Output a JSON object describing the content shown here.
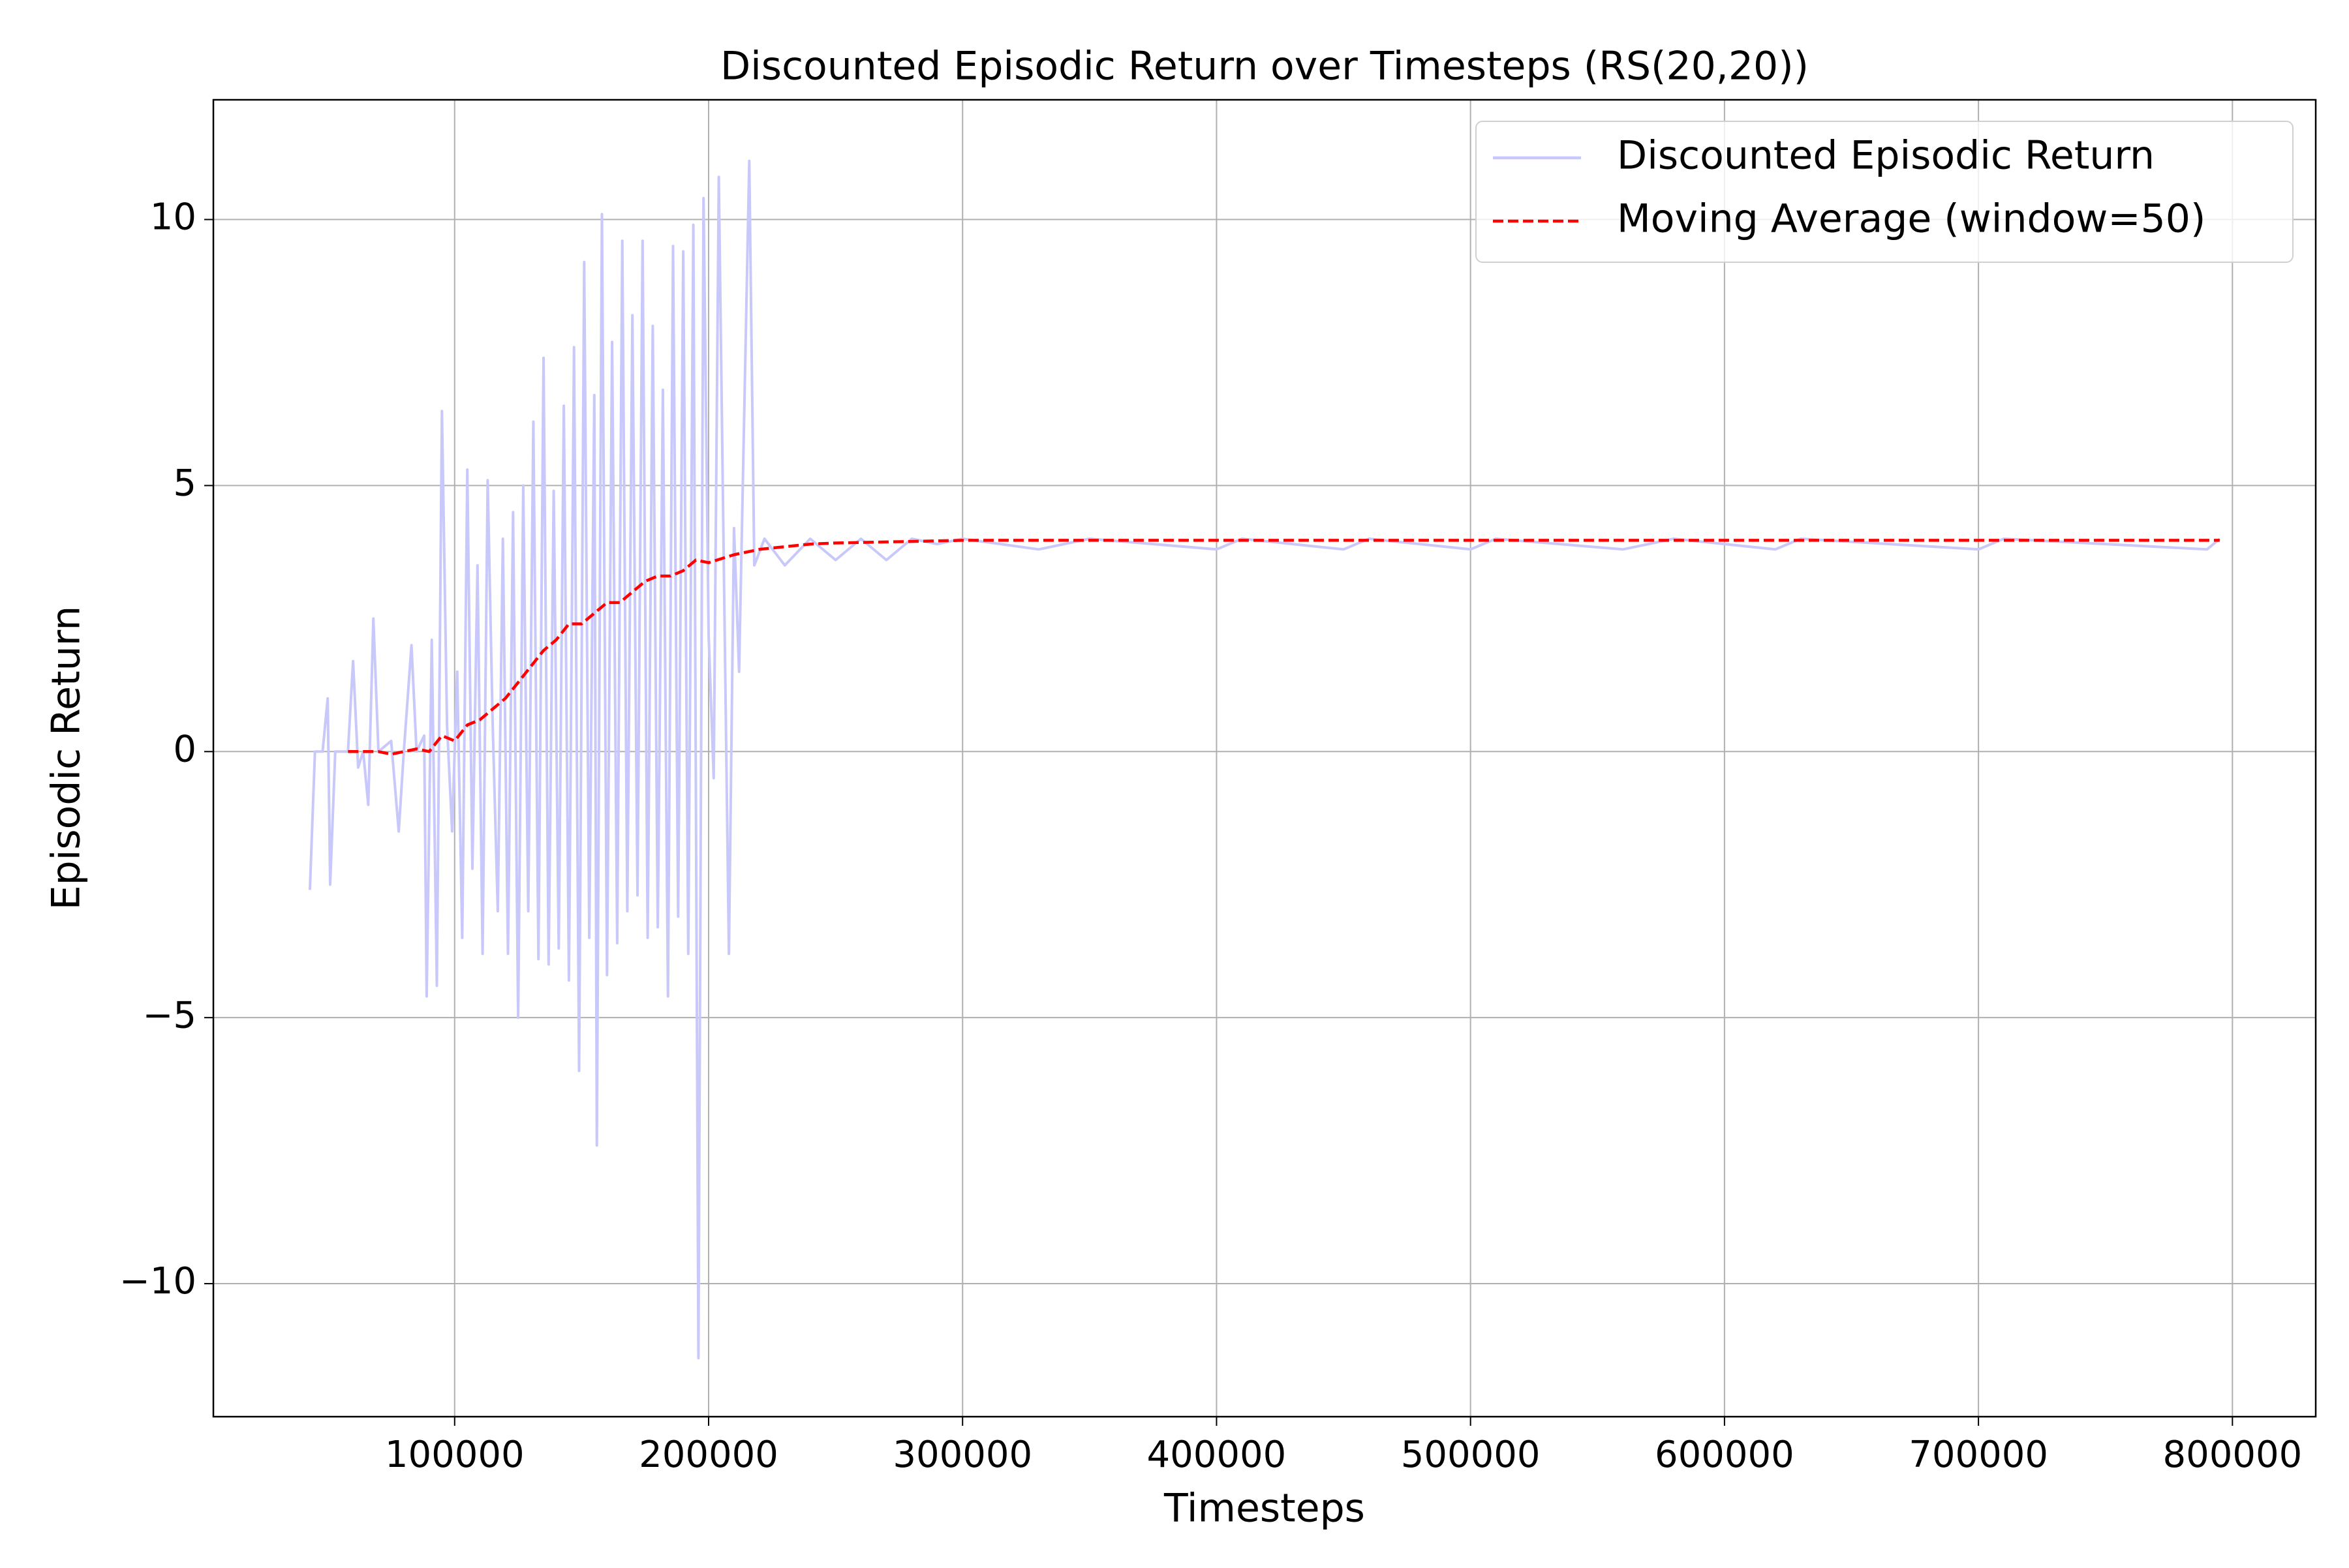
{
  "chart_data": {
    "type": "line",
    "title": "Discounted Episodic Return over Timesteps (RS(20,20))",
    "x_label": "Timesteps",
    "y_label": "Episodic Return",
    "xlim": [
      5000,
      832800
    ],
    "ylim": [
      -12.5,
      12.25
    ],
    "xticks": [
      100000,
      200000,
      300000,
      400000,
      500000,
      600000,
      700000,
      800000
    ],
    "yticks": [
      {
        "value": -10,
        "label": "−10"
      },
      {
        "value": -5,
        "label": "−5"
      },
      0,
      5,
      10
    ],
    "grid": true,
    "legend": "upper right",
    "series": [
      {
        "name": "Discounted Episodic Return",
        "color": "#c8c8fa",
        "style": "solid",
        "x": [
          43000,
          45000,
          48000,
          50000,
          51000,
          53000,
          58000,
          60000,
          62000,
          64000,
          66000,
          68000,
          70000,
          75000,
          78000,
          80000,
          83000,
          85000,
          88000,
          89000,
          91000,
          93000,
          95000,
          97000,
          99000,
          101000,
          103000,
          105000,
          107000,
          109000,
          111000,
          113000,
          115000,
          117000,
          119000,
          121000,
          123000,
          125000,
          127000,
          129000,
          131000,
          133000,
          135000,
          137000,
          139000,
          141000,
          143000,
          145000,
          147000,
          149000,
          151000,
          153000,
          155000,
          156000,
          158000,
          160000,
          162000,
          164000,
          166000,
          168000,
          170000,
          172000,
          174000,
          176000,
          178000,
          180000,
          182000,
          184000,
          186000,
          188000,
          190000,
          192000,
          194000,
          196000,
          198000,
          200000,
          202000,
          204000,
          206000,
          208000,
          210000,
          212000,
          216000,
          218000,
          222000,
          230000,
          240000,
          250000,
          260000,
          270000,
          280000,
          290000,
          300000,
          330000,
          350000,
          400000,
          410000,
          450000,
          460000,
          500000,
          510000,
          560000,
          580000,
          620000,
          630000,
          700000,
          710000,
          790000,
          795000
        ],
        "values": [
          -2.6,
          0,
          0,
          1.0,
          -2.5,
          0,
          0,
          1.7,
          -0.3,
          0,
          -1.0,
          2.5,
          0,
          0.2,
          -1.5,
          0,
          2.0,
          0,
          0.3,
          -4.6,
          2.1,
          -4.4,
          6.4,
          0.5,
          -1.5,
          1.5,
          -3.5,
          5.3,
          -2.2,
          3.5,
          -3.8,
          5.1,
          0.5,
          -3.0,
          4.0,
          -3.8,
          4.5,
          -5.0,
          5.0,
          -3.0,
          6.2,
          -3.9,
          7.4,
          -4.0,
          4.9,
          -3.7,
          6.5,
          -4.3,
          7.6,
          -6.0,
          9.2,
          -3.5,
          6.7,
          -7.4,
          10.1,
          -4.2,
          7.7,
          -3.6,
          9.6,
          -3.0,
          8.2,
          -2.7,
          9.6,
          -3.5,
          8.0,
          -3.3,
          6.8,
          -4.6,
          9.5,
          -3.1,
          9.4,
          -3.8,
          9.9,
          -11.4,
          10.4,
          2.2,
          -0.5,
          10.8,
          3.5,
          -3.8,
          4.2,
          1.5,
          11.1,
          3.5,
          4.0,
          3.5,
          4.0,
          3.6,
          4.0,
          3.6,
          4.0,
          3.9,
          4.0,
          3.8,
          4.0,
          3.8,
          4.0,
          3.8,
          4.0,
          3.8,
          4.0,
          3.8,
          4.0,
          3.8,
          4.0,
          3.8,
          4.0,
          3.8,
          4.0
        ]
      },
      {
        "name": "Moving Average (window=50)",
        "color": "#ff0000",
        "style": "dashed",
        "x": [
          58000,
          70000,
          75000,
          85000,
          90000,
          95000,
          100000,
          105000,
          110000,
          115000,
          120000,
          125000,
          130000,
          135000,
          140000,
          145000,
          150000,
          155000,
          160000,
          165000,
          170000,
          175000,
          180000,
          185000,
          190000,
          195000,
          200000,
          210000,
          220000,
          230000,
          240000,
          250000,
          270000,
          280000,
          300000,
          400000,
          600000,
          795000
        ],
        "values": [
          0,
          0,
          -0.05,
          0.05,
          0,
          0.3,
          0.2,
          0.5,
          0.6,
          0.8,
          1.0,
          1.3,
          1.6,
          1.9,
          2.1,
          2.4,
          2.4,
          2.6,
          2.8,
          2.8,
          3.0,
          3.2,
          3.3,
          3.3,
          3.4,
          3.6,
          3.55,
          3.7,
          3.8,
          3.85,
          3.9,
          3.92,
          3.94,
          3.95,
          3.97,
          3.97,
          3.97,
          3.97
        ]
      }
    ]
  }
}
